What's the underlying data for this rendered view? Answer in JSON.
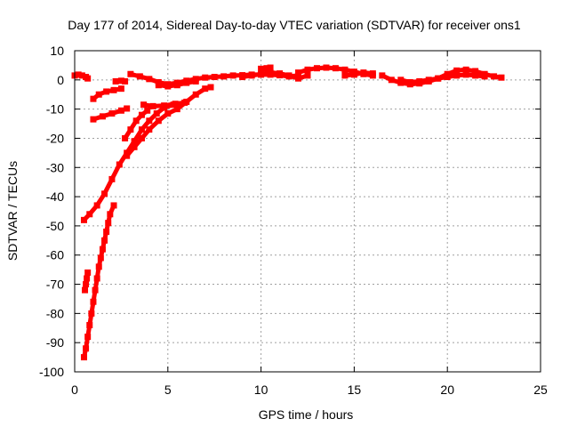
{
  "chart_data": {
    "type": "scatter",
    "title": "Day 177 of 2014, Sidereal Day-to-day VTEC variation (SDTVAR) for receiver ons1",
    "xlabel": "GPS time / hours",
    "ylabel": "SDTVAR / TECUs",
    "xlim": [
      0,
      25
    ],
    "ylim": [
      -100,
      10
    ],
    "xticks": [
      0,
      5,
      10,
      15,
      20,
      25
    ],
    "yticks": [
      -100,
      -90,
      -80,
      -70,
      -60,
      -50,
      -40,
      -30,
      -20,
      -10,
      0,
      10
    ],
    "grid": true,
    "legend": "none",
    "color": "#ff0000",
    "series": [
      {
        "name": "s1",
        "points": [
          [
            0.0,
            1.5
          ],
          [
            0.2,
            1.8
          ],
          [
            0.4,
            1.5
          ],
          [
            0.6,
            1.0
          ],
          [
            0.7,
            0.5
          ]
        ]
      },
      {
        "name": "s2",
        "points": [
          [
            0.5,
            -48
          ],
          [
            0.8,
            -46
          ],
          [
            1.2,
            -43
          ],
          [
            1.6,
            -39
          ],
          [
            2.0,
            -34
          ],
          [
            2.4,
            -29
          ],
          [
            2.8,
            -25
          ],
          [
            3.2,
            -21
          ],
          [
            3.6,
            -17
          ],
          [
            4.0,
            -14
          ],
          [
            4.4,
            -11.5
          ],
          [
            4.8,
            -9.5
          ],
          [
            5.3,
            -8.5
          ]
        ]
      },
      {
        "name": "s3",
        "points": [
          [
            0.5,
            -95
          ],
          [
            0.6,
            -92
          ],
          [
            0.7,
            -88
          ],
          [
            0.8,
            -84
          ],
          [
            0.9,
            -80
          ],
          [
            1.0,
            -76
          ],
          [
            1.1,
            -72
          ],
          [
            1.2,
            -68
          ],
          [
            1.3,
            -64
          ],
          [
            1.4,
            -61
          ],
          [
            1.5,
            -58
          ],
          [
            1.6,
            -55
          ],
          [
            1.7,
            -52
          ],
          [
            1.8,
            -49
          ],
          [
            1.9,
            -46
          ],
          [
            2.1,
            -43
          ]
        ]
      },
      {
        "name": "s4",
        "points": [
          [
            0.55,
            -72
          ],
          [
            0.6,
            -70
          ],
          [
            0.65,
            -68
          ],
          [
            0.7,
            -66
          ]
        ]
      },
      {
        "name": "s5",
        "points": [
          [
            1.0,
            -13.5
          ],
          [
            1.5,
            -12.5
          ],
          [
            2.0,
            -11.5
          ],
          [
            2.5,
            -10.5
          ],
          [
            2.8,
            -9.8
          ]
        ]
      },
      {
        "name": "s6",
        "points": [
          [
            1.0,
            -6.5
          ],
          [
            1.3,
            -5
          ],
          [
            1.7,
            -4
          ],
          [
            2.1,
            -3.5
          ],
          [
            2.5,
            -3.0
          ]
        ]
      },
      {
        "name": "s7",
        "points": [
          [
            2.2,
            -0.5
          ],
          [
            2.5,
            -0.3
          ],
          [
            2.7,
            -0.5
          ]
        ]
      },
      {
        "name": "s8",
        "points": [
          [
            2.8,
            -26
          ],
          [
            3.2,
            -23
          ],
          [
            3.6,
            -20
          ],
          [
            4.0,
            -17
          ],
          [
            4.5,
            -14
          ],
          [
            5.0,
            -11.5
          ],
          [
            5.5,
            -10
          ],
          [
            6.0,
            -7.5
          ],
          [
            6.5,
            -5
          ],
          [
            7.0,
            -3
          ],
          [
            7.3,
            -2.5
          ]
        ]
      },
      {
        "name": "s9",
        "points": [
          [
            2.7,
            -20
          ],
          [
            3.0,
            -17
          ],
          [
            3.3,
            -14
          ],
          [
            3.6,
            -12
          ],
          [
            3.9,
            -10.5
          ]
        ]
      },
      {
        "name": "s10",
        "points": [
          [
            3.7,
            -8.5
          ],
          [
            4.2,
            -9
          ],
          [
            4.8,
            -8.8
          ],
          [
            5.4,
            -8.2
          ],
          [
            5.9,
            -7.8
          ]
        ]
      },
      {
        "name": "s11",
        "points": [
          [
            3.0,
            2.0
          ],
          [
            3.5,
            1.2
          ],
          [
            4.0,
            0.3
          ],
          [
            4.5,
            -0.8
          ],
          [
            5.0,
            -1.5
          ],
          [
            5.5,
            -1.0
          ],
          [
            6.0,
            -0.3
          ],
          [
            6.5,
            0.3
          ],
          [
            7.0,
            0.8
          ],
          [
            7.5,
            1.0
          ],
          [
            8.0,
            1.2
          ],
          [
            8.5,
            1.5
          ],
          [
            9.0,
            1.6
          ],
          [
            9.5,
            1.8
          ],
          [
            10.0,
            1.8
          ],
          [
            10.5,
            1.8
          ],
          [
            11.0,
            1.6
          ],
          [
            11.5,
            1.2
          ],
          [
            12.0,
            1.5
          ]
        ]
      },
      {
        "name": "s12",
        "points": [
          [
            4.5,
            -1.8
          ],
          [
            5.0,
            -2.2
          ],
          [
            5.5,
            -1.8
          ],
          [
            6.0,
            -1.0
          ],
          [
            6.5,
            -0.5
          ]
        ]
      },
      {
        "name": "s13",
        "points": [
          [
            9.0,
            1.0
          ],
          [
            9.5,
            1.5
          ],
          [
            10.0,
            2.0
          ],
          [
            10.5,
            2.6
          ],
          [
            11.0,
            2.2
          ],
          [
            11.5,
            1.5
          ],
          [
            12.0,
            0.5
          ],
          [
            12.5,
            1.5
          ]
        ]
      },
      {
        "name": "s14",
        "points": [
          [
            10.0,
            3.8
          ],
          [
            10.3,
            4.0
          ],
          [
            10.5,
            4.2
          ]
        ]
      },
      {
        "name": "s15",
        "points": [
          [
            12.0,
            2.5
          ],
          [
            12.5,
            3.5
          ],
          [
            13.0,
            4.0
          ],
          [
            13.5,
            4.2
          ],
          [
            14.0,
            4.0
          ],
          [
            14.5,
            3.5
          ],
          [
            15.0,
            2.8
          ],
          [
            15.5,
            2.0
          ],
          [
            16.0,
            1.5
          ]
        ]
      },
      {
        "name": "s16",
        "points": [
          [
            14.5,
            1.5
          ],
          [
            15.0,
            1.8
          ],
          [
            15.5,
            2.5
          ],
          [
            16.0,
            2.2
          ]
        ]
      },
      {
        "name": "s17",
        "points": [
          [
            16.5,
            1.5
          ],
          [
            17.0,
            0.0
          ],
          [
            17.5,
            -1.0
          ],
          [
            18.0,
            -1.5
          ],
          [
            18.5,
            -1.2
          ],
          [
            19.0,
            -0.5
          ],
          [
            19.5,
            0.5
          ],
          [
            20.0,
            2.0
          ],
          [
            20.5,
            3.2
          ],
          [
            21.0,
            3.5
          ],
          [
            21.5,
            3.0
          ],
          [
            22.0,
            2.0
          ],
          [
            22.5,
            1.2
          ],
          [
            22.9,
            0.8
          ]
        ]
      },
      {
        "name": "s18",
        "points": [
          [
            17.5,
            0.0
          ],
          [
            18.0,
            -0.8
          ],
          [
            18.5,
            -0.5
          ],
          [
            19.0,
            0.0
          ],
          [
            19.5,
            0.5
          ],
          [
            20.0,
            1.0
          ],
          [
            20.5,
            1.5
          ],
          [
            21.0,
            1.8
          ],
          [
            21.5,
            1.5
          ],
          [
            22.0,
            1.2
          ]
        ]
      }
    ]
  }
}
